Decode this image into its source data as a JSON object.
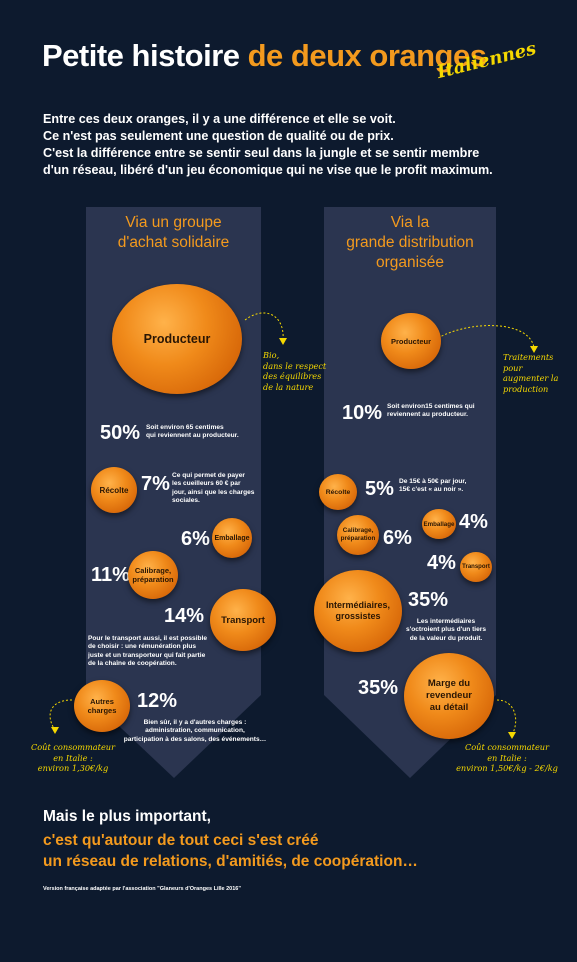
{
  "title": {
    "part1": "Petite histoire",
    "part2": "de deux oranges",
    "subtitle": "Italiennes"
  },
  "intro": [
    "Entre ces deux oranges, il y a une différence et elle se voit.",
    "Ce n'est pas seulement une question de qualité ou de prix.",
    "C'est la différence entre se sentir seul dans la jungle et se sentir membre",
    "d'un réseau, libéré d'un jeu économique qui ne vise que le profit maximum."
  ],
  "left": {
    "heading": [
      "Via un groupe",
      "d'achat solidaire"
    ],
    "producteur": "Producteur",
    "producteur_note": [
      "Bio,",
      "dans le respect",
      "des équilibres",
      "de la nature"
    ],
    "p50": "50%",
    "p50_note": [
      "Soit environ 65 centimes",
      "qui reviennent au producteur."
    ],
    "recolte": "Récolte",
    "p7": "7%",
    "p7_note": [
      "Ce qui permet de payer",
      "les cueilleurs 60 € par",
      "jour, ainsi que les charges",
      "sociales."
    ],
    "p6": "6%",
    "emballage": "Emballage",
    "p11": "11%",
    "calibrage": [
      "Calibrage,",
      "préparation"
    ],
    "p14": "14%",
    "transport": "Transport",
    "transport_note": [
      "Pour le transport aussi, il est possible",
      "de choisir : une rémunération plus",
      "juste et un transporteur qui fait partie",
      "de la chaîne de coopération."
    ],
    "autres": [
      "Autres",
      "charges"
    ],
    "p12": "12%",
    "autres_note": [
      "Bien sûr, il y a d'autres charges :",
      "administration, communication,",
      "participation à des salons, des événements…"
    ],
    "cout": [
      "Coût consommateur",
      "en Italie :",
      "environ 1,30€/kg"
    ]
  },
  "right": {
    "heading": [
      "Via la",
      "grande distribution",
      "organisée"
    ],
    "producteur": "Producteur",
    "producteur_note": [
      "Traitements",
      "pour",
      "augmenter la",
      "production"
    ],
    "p10": "10%",
    "p10_note": [
      "Soit environ15 centimes qui",
      "reviennent au producteur."
    ],
    "recolte": "Récolte",
    "p5": "5%",
    "p5_note": [
      "De 15€ à 50€ par jour,",
      "15€ c'est « au noir »."
    ],
    "calibrage": [
      "Calibrage,",
      "préparation"
    ],
    "p6": "6%",
    "emballage": "Emballage",
    "p4a": "4%",
    "p4b": "4%",
    "transport": "Transport",
    "intermediaires": [
      "Intermédiaires,",
      "grossistes"
    ],
    "p35a": "35%",
    "inter_note": [
      "Les intermédiaires",
      "s'octroient plus d'un tiers",
      "de la valeur du produit."
    ],
    "p35b": "35%",
    "marge": [
      "Marge du",
      "revendeur",
      "au détail"
    ],
    "cout": [
      "Coût consommateur",
      "en Italie :",
      "environ 1,50€/kg - 2€/kg"
    ]
  },
  "bottom": {
    "line1": "Mais le plus important,",
    "line2": "c'est qu'autour de tout ceci s'est créé",
    "line3": "un réseau de relations, d'amitiés, de coopération…"
  },
  "credit": "Version française adaptée par l'association \"Glaneurs d'Oranges Lille 2016\"",
  "colors": {
    "background": "#0d1a2e",
    "accent": "#f39a1e",
    "arrow": "#2b3550",
    "note": "#f5d800"
  }
}
